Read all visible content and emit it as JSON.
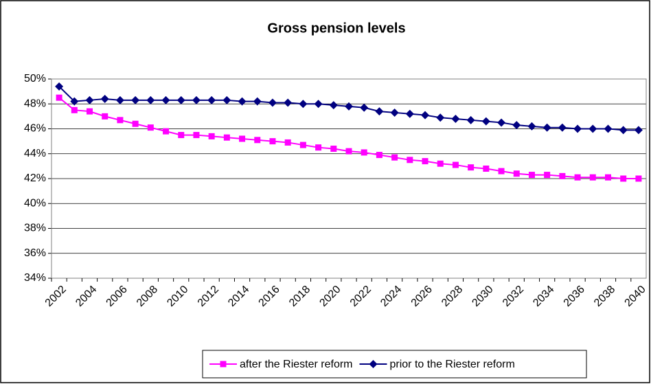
{
  "chart_data": {
    "type": "line",
    "title": "Gross pension levels",
    "categories": [
      "2002",
      null,
      "2004",
      null,
      "2006",
      null,
      "2008",
      null,
      "2010",
      null,
      "2012",
      null,
      "2014",
      null,
      "2016",
      null,
      "2018",
      null,
      "2020",
      null,
      "2022",
      null,
      "2024",
      null,
      "2026",
      null,
      "2028",
      null,
      "2030",
      null,
      "2032",
      null,
      "2034",
      null,
      "2036",
      null,
      "2038",
      null,
      "2040"
    ],
    "series": [
      {
        "name": "after the Riester reform",
        "color": "#ff00ff",
        "marker": "square",
        "values": [
          48.5,
          47.5,
          47.4,
          47.0,
          46.7,
          46.4,
          46.1,
          45.8,
          45.5,
          45.5,
          45.4,
          45.3,
          45.2,
          45.1,
          45.0,
          44.9,
          44.7,
          44.5,
          44.4,
          44.2,
          44.1,
          43.9,
          43.7,
          43.5,
          43.4,
          43.2,
          43.1,
          42.9,
          42.8,
          42.6,
          42.4,
          42.3,
          42.3,
          42.2,
          42.1,
          42.1,
          42.1,
          42.0,
          42.0
        ]
      },
      {
        "name": "prior to the Riester reform",
        "color": "#000080",
        "marker": "diamond",
        "values": [
          49.4,
          48.2,
          48.3,
          48.4,
          48.3,
          48.3,
          48.3,
          48.3,
          48.3,
          48.3,
          48.3,
          48.3,
          48.2,
          48.2,
          48.1,
          48.1,
          48.0,
          48.0,
          47.9,
          47.8,
          47.7,
          47.4,
          47.3,
          47.2,
          47.1,
          46.9,
          46.8,
          46.7,
          46.6,
          46.5,
          46.3,
          46.2,
          46.1,
          46.1,
          46.0,
          46.0,
          46.0,
          45.9,
          45.9
        ]
      }
    ],
    "ylim": [
      34,
      50
    ],
    "yticks": [
      {
        "value": 34,
        "label": "34%"
      },
      {
        "value": 36,
        "label": "36%"
      },
      {
        "value": 38,
        "label": "38%"
      },
      {
        "value": 40,
        "label": "40%"
      },
      {
        "value": 42,
        "label": "42%"
      },
      {
        "value": 44,
        "label": "44%"
      },
      {
        "value": 46,
        "label": "46%"
      },
      {
        "value": 48,
        "label": "48%"
      },
      {
        "value": 50,
        "label": "50%"
      }
    ],
    "grid": true,
    "legend": "bottom"
  }
}
